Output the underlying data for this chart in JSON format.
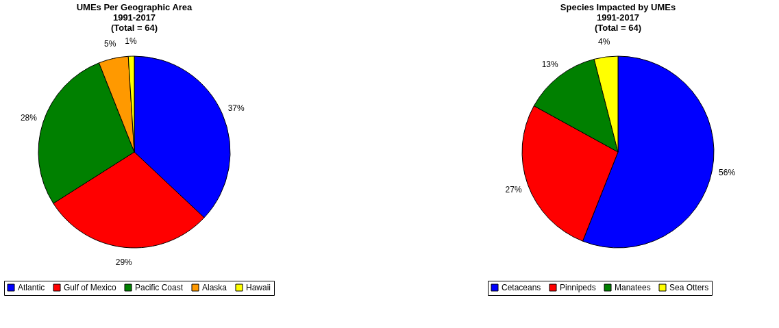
{
  "chart_data": [
    {
      "type": "pie",
      "title": "UMEs Per Geographic Area\n1991-2017\n(Total = 64)",
      "categories": [
        "Atlantic",
        "Gulf of Mexico",
        "Pacific Coast",
        "Alaska",
        "Hawaii"
      ],
      "values": [
        37,
        29,
        28,
        5,
        1
      ],
      "colors": [
        "#0000ff",
        "#ff0000",
        "#008000",
        "#ff9900",
        "#ffff00"
      ],
      "value_labels": [
        "37%",
        "29%",
        "28%",
        "5%",
        "1%"
      ],
      "legend": "bottom"
    },
    {
      "type": "pie",
      "title": "Species Impacted by UMEs\n1991-2017\n(Total = 64)",
      "categories": [
        "Cetaceans",
        "Pinnipeds",
        "Manatees",
        "Sea Otters"
      ],
      "values": [
        56,
        27,
        13,
        4
      ],
      "colors": [
        "#0000ff",
        "#ff0000",
        "#008000",
        "#ffff00"
      ],
      "value_labels": [
        "56%",
        "27%",
        "13%",
        "4%"
      ],
      "legend": "bottom"
    }
  ]
}
